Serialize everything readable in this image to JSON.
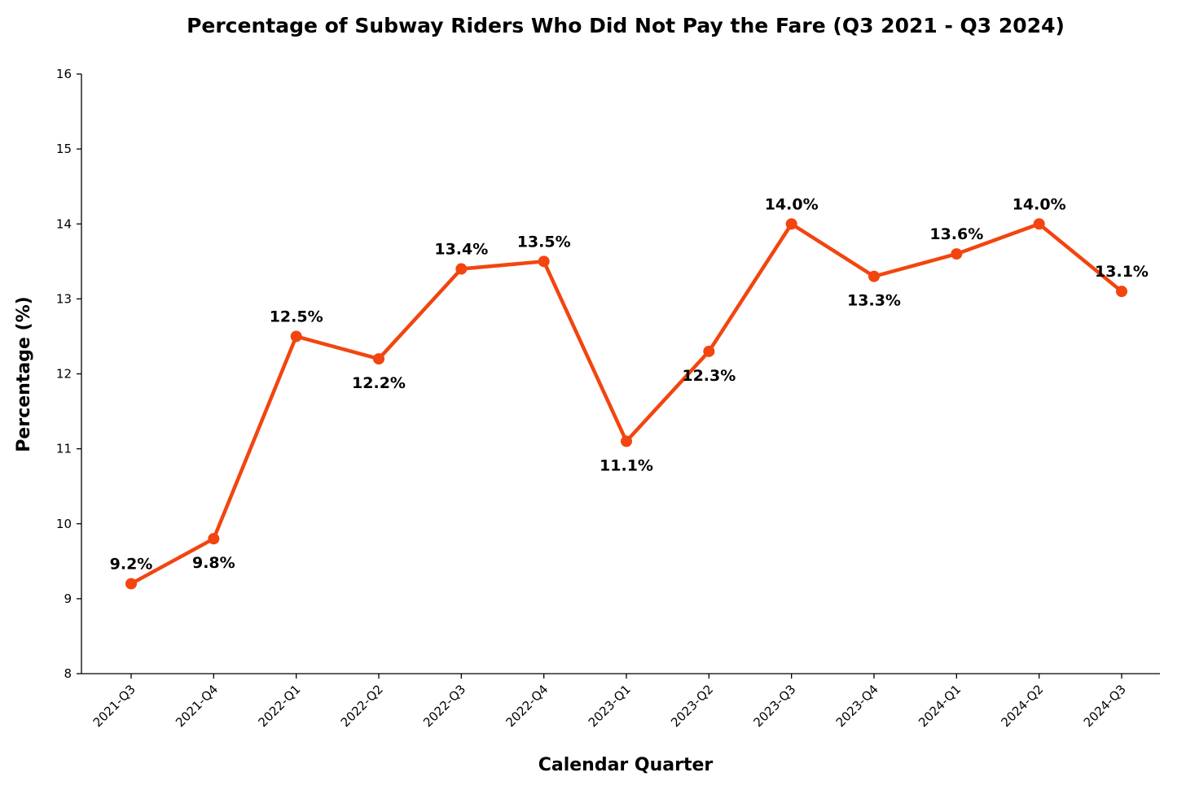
{
  "chart_data": {
    "type": "line",
    "title": "Percentage of Subway Riders Who Did Not Pay the Fare (Q3 2021 - Q3 2024)",
    "xlabel": "Calendar Quarter",
    "ylabel": "Percentage (%)",
    "categories": [
      "2021-Q3",
      "2021-Q4",
      "2022-Q1",
      "2022-Q2",
      "2022-Q3",
      "2022-Q4",
      "2023-Q1",
      "2023-Q2",
      "2023-Q3",
      "2023-Q4",
      "2024-Q1",
      "2024-Q2",
      "2024-Q3"
    ],
    "values": [
      9.2,
      9.8,
      12.5,
      12.2,
      13.4,
      13.5,
      11.1,
      12.3,
      14.0,
      13.3,
      13.6,
      14.0,
      13.1
    ],
    "data_labels": [
      "9.2%",
      "9.8%",
      "12.5%",
      "12.2%",
      "13.4%",
      "13.5%",
      "11.1%",
      "12.3%",
      "14.0%",
      "13.3%",
      "13.6%",
      "14.0%",
      "13.1%"
    ],
    "label_positions": [
      "above",
      "below",
      "above",
      "below",
      "above",
      "above",
      "below",
      "below",
      "above",
      "below",
      "above",
      "above",
      "above"
    ],
    "ylim": [
      8,
      16
    ],
    "yticks": [
      "8",
      "9",
      "10",
      "11",
      "12",
      "13",
      "14",
      "15",
      "16"
    ],
    "grid": false,
    "legend": "none",
    "series_color": "#F2450F"
  }
}
